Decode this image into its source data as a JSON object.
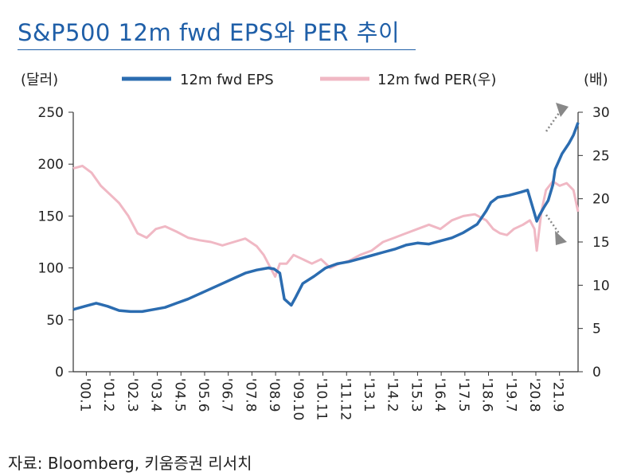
{
  "header": {
    "title": "S&P500 12m fwd EPS와 PER 추이"
  },
  "footer": {
    "source": "자료: Bloomberg, 키움증권 리서치"
  },
  "chart_data": {
    "type": "line",
    "title": "S&P500 12m fwd EPS와 PER 추이",
    "left_unit": "(달러)",
    "right_unit": "(배)",
    "x_categories": [
      "'00.1",
      "'01.2",
      "'02.3",
      "'03.4",
      "'04.5",
      "'05.6",
      "'06.7",
      "'07.8",
      "'08.9",
      "'09.10",
      "'10.11",
      "'11.12",
      "'13.1",
      "'14.2",
      "'15.3",
      "'16.4",
      "'17.5",
      "'18.6",
      "'19.7",
      "'20.8",
      "'21.9"
    ],
    "x_range": [
      2000.0,
      2022.0
    ],
    "y_left": {
      "ticks": [
        "0",
        "50",
        "100",
        "150",
        "200",
        "250"
      ],
      "range": [
        0,
        250
      ]
    },
    "y_right": {
      "ticks": [
        "0",
        "5",
        "10",
        "15",
        "20",
        "25",
        "30"
      ],
      "range": [
        0,
        30
      ]
    },
    "grid": false,
    "legend_position": "top",
    "series": [
      {
        "name": "12m fwd EPS",
        "axis": "left",
        "color": "#2b6cb0",
        "x": [
          2000.0,
          2000.5,
          2001.0,
          2001.5,
          2002.0,
          2002.5,
          2003.0,
          2003.5,
          2004.0,
          2004.5,
          2005.0,
          2005.5,
          2006.0,
          2006.5,
          2007.0,
          2007.5,
          2008.0,
          2008.5,
          2008.75,
          2009.0,
          2009.2,
          2009.5,
          2009.7,
          2010.0,
          2010.5,
          2011.0,
          2011.5,
          2012.0,
          2012.5,
          2013.0,
          2013.5,
          2014.0,
          2014.5,
          2015.0,
          2015.5,
          2016.0,
          2016.5,
          2017.0,
          2017.3,
          2017.6,
          2018.0,
          2018.2,
          2018.5,
          2019.0,
          2019.5,
          2019.8,
          2020.0,
          2020.2,
          2020.3,
          2020.5,
          2020.7,
          2020.9,
          2021.0,
          2021.3,
          2021.6,
          2021.8,
          2022.0
        ],
        "y": [
          60,
          63,
          66,
          63,
          59,
          58,
          58,
          60,
          62,
          66,
          70,
          75,
          80,
          85,
          90,
          95,
          98,
          100,
          99,
          95,
          70,
          64,
          72,
          85,
          92,
          100,
          104,
          106,
          109,
          112,
          115,
          118,
          122,
          124,
          123,
          126,
          129,
          134,
          138,
          142,
          155,
          163,
          168,
          170,
          173,
          175,
          160,
          145,
          150,
          158,
          165,
          180,
          195,
          210,
          220,
          228,
          240
        ]
      },
      {
        "name": "12m fwd PER(우)",
        "axis": "right",
        "color": "#f0b8c4",
        "x": [
          2000.0,
          2000.4,
          2000.8,
          2001.2,
          2001.6,
          2002.0,
          2002.4,
          2002.8,
          2003.2,
          2003.6,
          2004.0,
          2004.5,
          2005.0,
          2005.5,
          2006.0,
          2006.5,
          2007.0,
          2007.5,
          2008.0,
          2008.3,
          2008.6,
          2008.8,
          2009.0,
          2009.3,
          2009.6,
          2010.0,
          2010.4,
          2010.8,
          2011.2,
          2011.6,
          2012.0,
          2012.5,
          2013.0,
          2013.5,
          2014.0,
          2014.5,
          2015.0,
          2015.5,
          2016.0,
          2016.5,
          2017.0,
          2017.5,
          2018.0,
          2018.3,
          2018.6,
          2018.9,
          2019.2,
          2019.6,
          2019.9,
          2020.1,
          2020.2,
          2020.4,
          2020.6,
          2020.9,
          2021.2,
          2021.5,
          2021.8,
          2022.0
        ],
        "y": [
          23.5,
          23.8,
          23.0,
          21.5,
          20.5,
          19.5,
          18.0,
          16.0,
          15.5,
          16.5,
          16.8,
          16.2,
          15.5,
          15.2,
          15.0,
          14.6,
          15.0,
          15.4,
          14.5,
          13.5,
          12.0,
          11.0,
          12.5,
          12.5,
          13.5,
          13.0,
          12.5,
          13.0,
          12.0,
          12.5,
          12.8,
          13.5,
          14.0,
          15.0,
          15.5,
          16.0,
          16.5,
          17.0,
          16.5,
          17.5,
          18.0,
          18.2,
          17.5,
          16.5,
          16.0,
          15.8,
          16.5,
          17.0,
          17.5,
          16.5,
          14.0,
          18.5,
          21.0,
          22.0,
          21.5,
          21.8,
          21.0,
          18.5
        ]
      }
    ]
  }
}
